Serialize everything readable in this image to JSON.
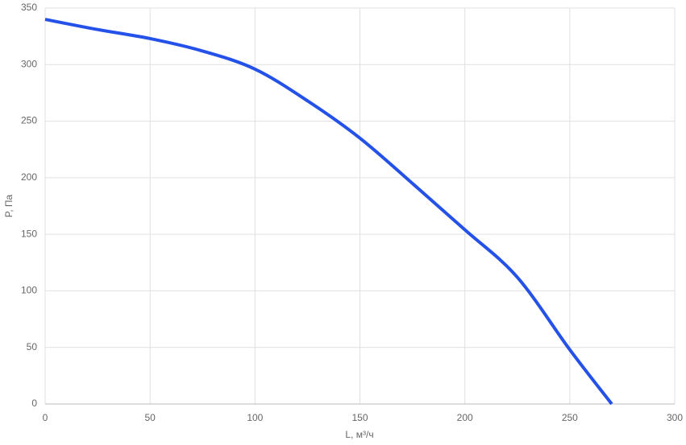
{
  "chart_data": {
    "type": "line",
    "x_label": "L, м³/ч",
    "y_label": "P, Па",
    "x": [
      0,
      25,
      50,
      75,
      100,
      125,
      150,
      175,
      200,
      225,
      250,
      270
    ],
    "series": [
      {
        "color": "#2452e8",
        "values": [
          340,
          331,
          323,
          312,
          296,
          268,
          235,
          195,
          154,
          112,
          48,
          0
        ]
      }
    ],
    "xlim": [
      0,
      300
    ],
    "xticks": [
      0,
      50,
      100,
      150,
      200,
      250,
      300
    ],
    "ylim": [
      0,
      350
    ],
    "yticks": [
      0,
      50,
      100,
      150,
      200,
      250,
      300,
      350
    ],
    "grid": true
  }
}
